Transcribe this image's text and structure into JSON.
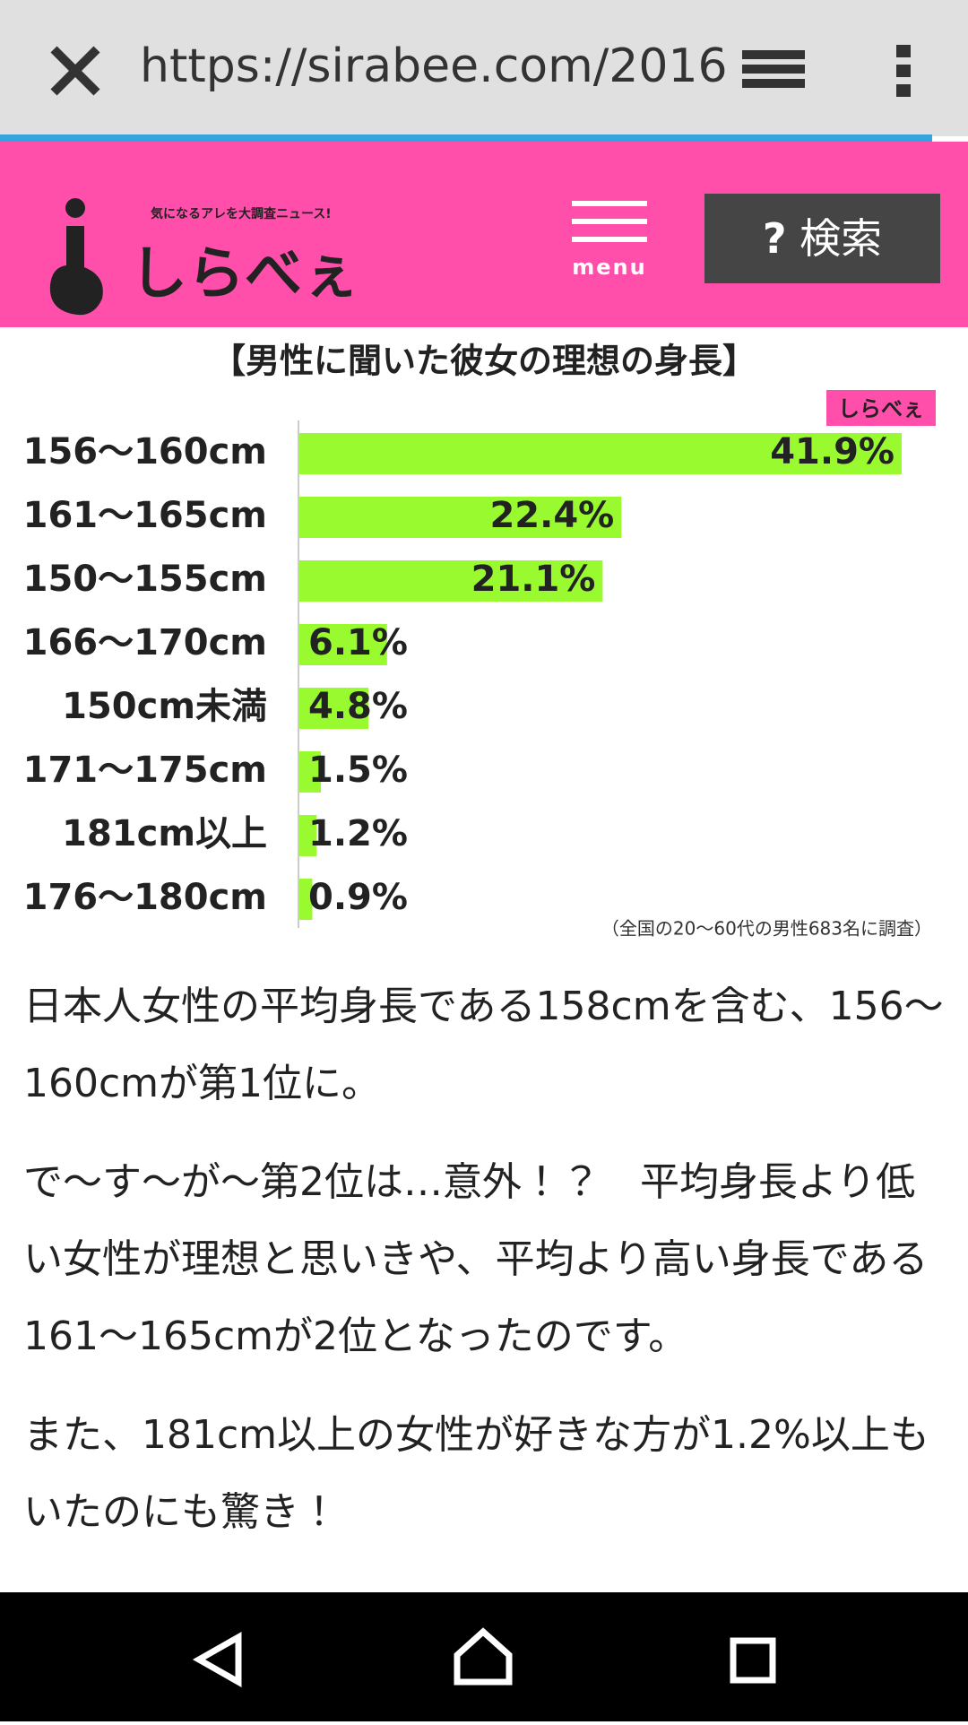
{
  "browser": {
    "url": "https://sirabee.com/2016"
  },
  "header": {
    "tagline": "気になるアレを大調査ニュース!",
    "logo": "しらべぇ",
    "menu": "menu",
    "search": "検索"
  },
  "chart_data": {
    "type": "bar",
    "title": "【男性に聞いた彼女の理想の身長】",
    "logo": "しらべぇ",
    "categories": [
      "156〜160cm",
      "161〜165cm",
      "150〜155cm",
      "166〜170cm",
      "150cm未満",
      "171〜175cm",
      "181cm以上",
      "176〜180cm"
    ],
    "values": [
      41.9,
      22.4,
      21.1,
      6.1,
      4.8,
      1.5,
      1.2,
      0.9
    ],
    "value_labels": [
      "41.9%",
      "22.4%",
      "21.1%",
      "6.1%",
      "4.8%",
      "1.5%",
      "1.2%",
      "0.9%"
    ],
    "color": "#99fb2f",
    "note": "（全国の20〜60代の男性683名に調査）"
  },
  "article": {
    "paragraphs": [
      "日本人女性の平均身長である158cmを含む、156〜160cmが第1位に。",
      "で〜す〜が〜第2位は…意外！？　平均身長より低い女性が理想と思いきや、平均より高い身長である161〜165cmが2位となったのです。",
      "また、181cm以上の女性が好きな方が1.2%以上もいたのにも驚き！"
    ]
  }
}
